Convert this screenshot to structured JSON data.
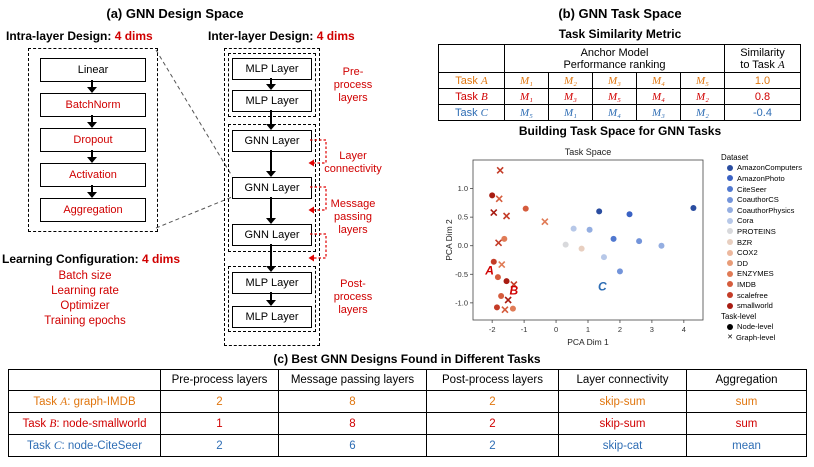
{
  "panel_a": {
    "title": "(a) GNN Design Space",
    "intra_heading": "Intra-layer Design: ",
    "intra_dims": "4 dims",
    "intra_boxes": [
      {
        "label": "Linear",
        "color": "#000000"
      },
      {
        "label": "BatchNorm",
        "color": "#d00000"
      },
      {
        "label": "Dropout",
        "color": "#d00000"
      },
      {
        "label": "Activation",
        "color": "#d00000"
      },
      {
        "label": "Aggregation",
        "color": "#d00000"
      }
    ],
    "inter_heading": "Inter-layer Design: ",
    "inter_dims": "4 dims",
    "inter_boxes": [
      "MLP Layer",
      "MLP Layer",
      "GNN Layer",
      "GNN Layer",
      "GNN Layer",
      "MLP Layer",
      "MLP Layer"
    ],
    "inter_labels": {
      "pre": "Pre-\nprocess\nlayers",
      "connectivity": "Layer\nconnectivity",
      "message": "Message\npassing\nlayers",
      "post": "Post-\nprocess\nlayers"
    },
    "learning_heading": "Learning Configuration: ",
    "learning_dims": "4 dims",
    "learning_items": [
      "Batch size",
      "Learning rate",
      "Optimizer",
      "Training epochs"
    ]
  },
  "panel_b": {
    "title": "(b) GNN Task Space",
    "metric_title": "Task Similarity Metric",
    "table": {
      "anchor_header": "Anchor Model\nPerformance ranking",
      "similarity_header_prefix": "Similarity\nto Task ",
      "similarity_header_letter": "A",
      "rows": [
        {
          "prefix": "Task ",
          "letter": "A",
          "ranking": [
            "M₁",
            "M₂",
            "M₃",
            "M₄",
            "M₅"
          ],
          "similarity": "1.0",
          "color": "#e0760f"
        },
        {
          "prefix": "Task ",
          "letter": "B",
          "ranking": [
            "M₁",
            "M₃",
            "M₅",
            "M₄",
            "M₂"
          ],
          "similarity": "0.8",
          "color": "#d00000"
        },
        {
          "prefix": "Task ",
          "letter": "C",
          "ranking": [
            "M₅",
            "M₁",
            "M₄",
            "M₃",
            "M₂"
          ],
          "similarity": "-0.4",
          "color": "#2e6db4"
        }
      ]
    },
    "space_title": "Building Task Space for GNN Tasks"
  },
  "chart_data": {
    "type": "scatter",
    "title": "Task Space",
    "xlabel": "PCA Dim 1",
    "ylabel": "PCA Dim 2",
    "xlim": [
      -2.6,
      4.6
    ],
    "ylim": [
      -1.3,
      1.5
    ],
    "xticks": [
      -2,
      -1,
      0,
      1,
      2,
      3,
      4
    ],
    "yticks": [
      1.0,
      0.5,
      0.0,
      -0.5,
      -1.0
    ],
    "grid": false,
    "legend_position": "right",
    "legend": [
      {
        "label": "Dataset",
        "marker": "none"
      },
      {
        "label": "AmazonComputers",
        "color": "#2a4da0",
        "marker": "o"
      },
      {
        "label": "AmazonPhoto",
        "color": "#3a62c4",
        "marker": "o"
      },
      {
        "label": "CiteSeer",
        "color": "#5078cf",
        "marker": "o"
      },
      {
        "label": "CoauthorCS",
        "color": "#7394da",
        "marker": "o"
      },
      {
        "label": "CoauthorPhysics",
        "color": "#94aee1",
        "marker": "o"
      },
      {
        "label": "Cora",
        "color": "#b7c8e8",
        "marker": "o"
      },
      {
        "label": "PROTEINS",
        "color": "#d8d9dc",
        "marker": "o"
      },
      {
        "label": "BZR",
        "color": "#e8cfc0",
        "marker": "o"
      },
      {
        "label": "COX2",
        "color": "#ecb89e",
        "marker": "o"
      },
      {
        "label": "DD",
        "color": "#e89c78",
        "marker": "o"
      },
      {
        "label": "ENZYMES",
        "color": "#e07b56",
        "marker": "o"
      },
      {
        "label": "IMDB",
        "color": "#d55c3d",
        "marker": "o"
      },
      {
        "label": "scalefree",
        "color": "#c43c28",
        "marker": "o"
      },
      {
        "label": "smallworld",
        "color": "#a81c12",
        "marker": "o"
      },
      {
        "label": "Task-level",
        "marker": "none"
      },
      {
        "label": "Node-level",
        "color": "#000000",
        "marker": "o"
      },
      {
        "label": "Graph-level",
        "color": "#000000",
        "marker": "x"
      }
    ],
    "points": [
      {
        "x": -1.75,
        "y": 1.32,
        "color": "#c43c28",
        "marker": "x"
      },
      {
        "x": -2.0,
        "y": 0.88,
        "color": "#a81c12",
        "marker": "o"
      },
      {
        "x": -1.78,
        "y": 0.82,
        "color": "#d55c3d",
        "marker": "x"
      },
      {
        "x": -1.95,
        "y": 0.58,
        "color": "#a81c12",
        "marker": "x"
      },
      {
        "x": -1.55,
        "y": 0.52,
        "color": "#c43c28",
        "marker": "x"
      },
      {
        "x": -0.95,
        "y": 0.65,
        "color": "#d55c3d",
        "marker": "o"
      },
      {
        "x": -0.35,
        "y": 0.42,
        "color": "#e07b56",
        "marker": "x"
      },
      {
        "x": -1.62,
        "y": 0.12,
        "color": "#e07b56",
        "marker": "o"
      },
      {
        "x": -1.8,
        "y": 0.05,
        "color": "#c43c28",
        "marker": "x"
      },
      {
        "x": -1.95,
        "y": -0.28,
        "color": "#c43c28",
        "marker": "o"
      },
      {
        "x": -1.7,
        "y": -0.33,
        "color": "#e07b56",
        "marker": "x"
      },
      {
        "x": -1.82,
        "y": -0.55,
        "color": "#d55c3d",
        "marker": "o"
      },
      {
        "x": -1.55,
        "y": -0.62,
        "color": "#a81c12",
        "marker": "o"
      },
      {
        "x": -1.32,
        "y": -0.68,
        "color": "#c43c28",
        "marker": "x"
      },
      {
        "x": -1.72,
        "y": -0.88,
        "color": "#d55c3d",
        "marker": "o"
      },
      {
        "x": -1.5,
        "y": -0.95,
        "color": "#a81c12",
        "marker": "x"
      },
      {
        "x": -1.85,
        "y": -1.08,
        "color": "#c43c28",
        "marker": "o"
      },
      {
        "x": -1.35,
        "y": -1.1,
        "color": "#e07b56",
        "marker": "o"
      },
      {
        "x": -1.6,
        "y": -1.12,
        "color": "#d55c3d",
        "marker": "x"
      },
      {
        "x": 1.35,
        "y": 0.6,
        "color": "#2a4da0",
        "marker": "o"
      },
      {
        "x": 2.3,
        "y": 0.55,
        "color": "#3a62c4",
        "marker": "o"
      },
      {
        "x": 4.3,
        "y": 0.66,
        "color": "#2a4da0",
        "marker": "o"
      },
      {
        "x": 0.55,
        "y": 0.3,
        "color": "#b7c8e8",
        "marker": "o"
      },
      {
        "x": 1.05,
        "y": 0.28,
        "color": "#94aee1",
        "marker": "o"
      },
      {
        "x": 1.8,
        "y": 0.12,
        "color": "#5078cf",
        "marker": "o"
      },
      {
        "x": 2.6,
        "y": 0.08,
        "color": "#7394da",
        "marker": "o"
      },
      {
        "x": 3.3,
        "y": 0.0,
        "color": "#94aee1",
        "marker": "o"
      },
      {
        "x": 0.3,
        "y": 0.02,
        "color": "#d8d9dc",
        "marker": "o"
      },
      {
        "x": 0.8,
        "y": -0.05,
        "color": "#e8cfc0",
        "marker": "o"
      },
      {
        "x": 1.5,
        "y": -0.2,
        "color": "#b7c8e8",
        "marker": "o"
      },
      {
        "x": 2.0,
        "y": -0.45,
        "color": "#7394da",
        "marker": "o"
      }
    ],
    "annotations": [
      {
        "text": "A",
        "x": -2.08,
        "y": -0.5,
        "color": "#d00000"
      },
      {
        "text": "B",
        "x": -1.32,
        "y": -0.85,
        "color": "#d00000"
      },
      {
        "text": "C",
        "x": 1.45,
        "y": -0.78,
        "color": "#2e6db4"
      }
    ]
  },
  "panel_c": {
    "title": "(c) Best GNN Designs Found in Different Tasks",
    "headers": [
      "",
      "Pre-process layers",
      "Message passing layers",
      "Post-process layers",
      "Layer connectivity",
      "Aggregation"
    ],
    "rows": [
      {
        "prefix": "Task ",
        "letter": "A",
        "suffix": ": graph-IMDB",
        "values": [
          "2",
          "8",
          "2",
          "skip-sum",
          "sum"
        ],
        "color": "#e0760f"
      },
      {
        "prefix": "Task ",
        "letter": "B",
        "suffix": ": node-smallworld",
        "values": [
          "1",
          "8",
          "2",
          "skip-sum",
          "sum"
        ],
        "color": "#d00000"
      },
      {
        "prefix": "Task ",
        "letter": "C",
        "suffix": ": node-CiteSeer",
        "values": [
          "2",
          "6",
          "2",
          "skip-cat",
          "mean"
        ],
        "color": "#2e6db4"
      }
    ]
  }
}
